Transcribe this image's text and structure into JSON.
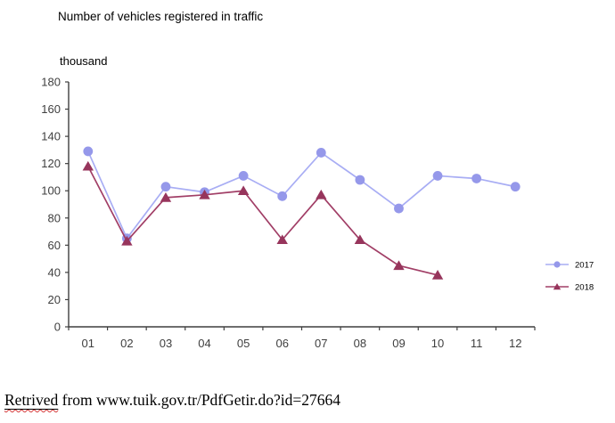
{
  "page": {
    "background": "#ffffff"
  },
  "chart_data": {
    "type": "line",
    "title": "Number of vehicles registered in traffic",
    "units_label": "thousand",
    "xlabel": "",
    "ylabel": "thousand",
    "categories": [
      "01",
      "02",
      "03",
      "04",
      "05",
      "06",
      "07",
      "08",
      "09",
      "10",
      "11",
      "12"
    ],
    "series": [
      {
        "name": "2017",
        "marker": "circle",
        "marker_color": "#9598EA",
        "line_color": "#A8ADF4",
        "values": [
          129,
          65,
          103,
          99,
          111,
          96,
          128,
          108,
          87,
          111,
          109,
          103
        ]
      },
      {
        "name": "2018",
        "marker": "triangle",
        "marker_color": "#97355C",
        "line_color": "#A13E66",
        "values": [
          118,
          63,
          95,
          97,
          100,
          64,
          97,
          64,
          45,
          38
        ]
      }
    ],
    "ylim": [
      0,
      180
    ],
    "ytick_step": 20,
    "ytick_labels": [
      "0",
      "20",
      "40",
      "60",
      "80",
      "100",
      "120",
      "140",
      "160",
      "180"
    ],
    "grid": false,
    "legend_position": "right",
    "axis_color": "#3F3F3F",
    "tick_label_color": "#3F3F3F"
  },
  "citation": {
    "misspelled_word": "Retrived",
    "rest": " from www.tuik.gov.tr/PdfGetir.do?id=27664"
  }
}
